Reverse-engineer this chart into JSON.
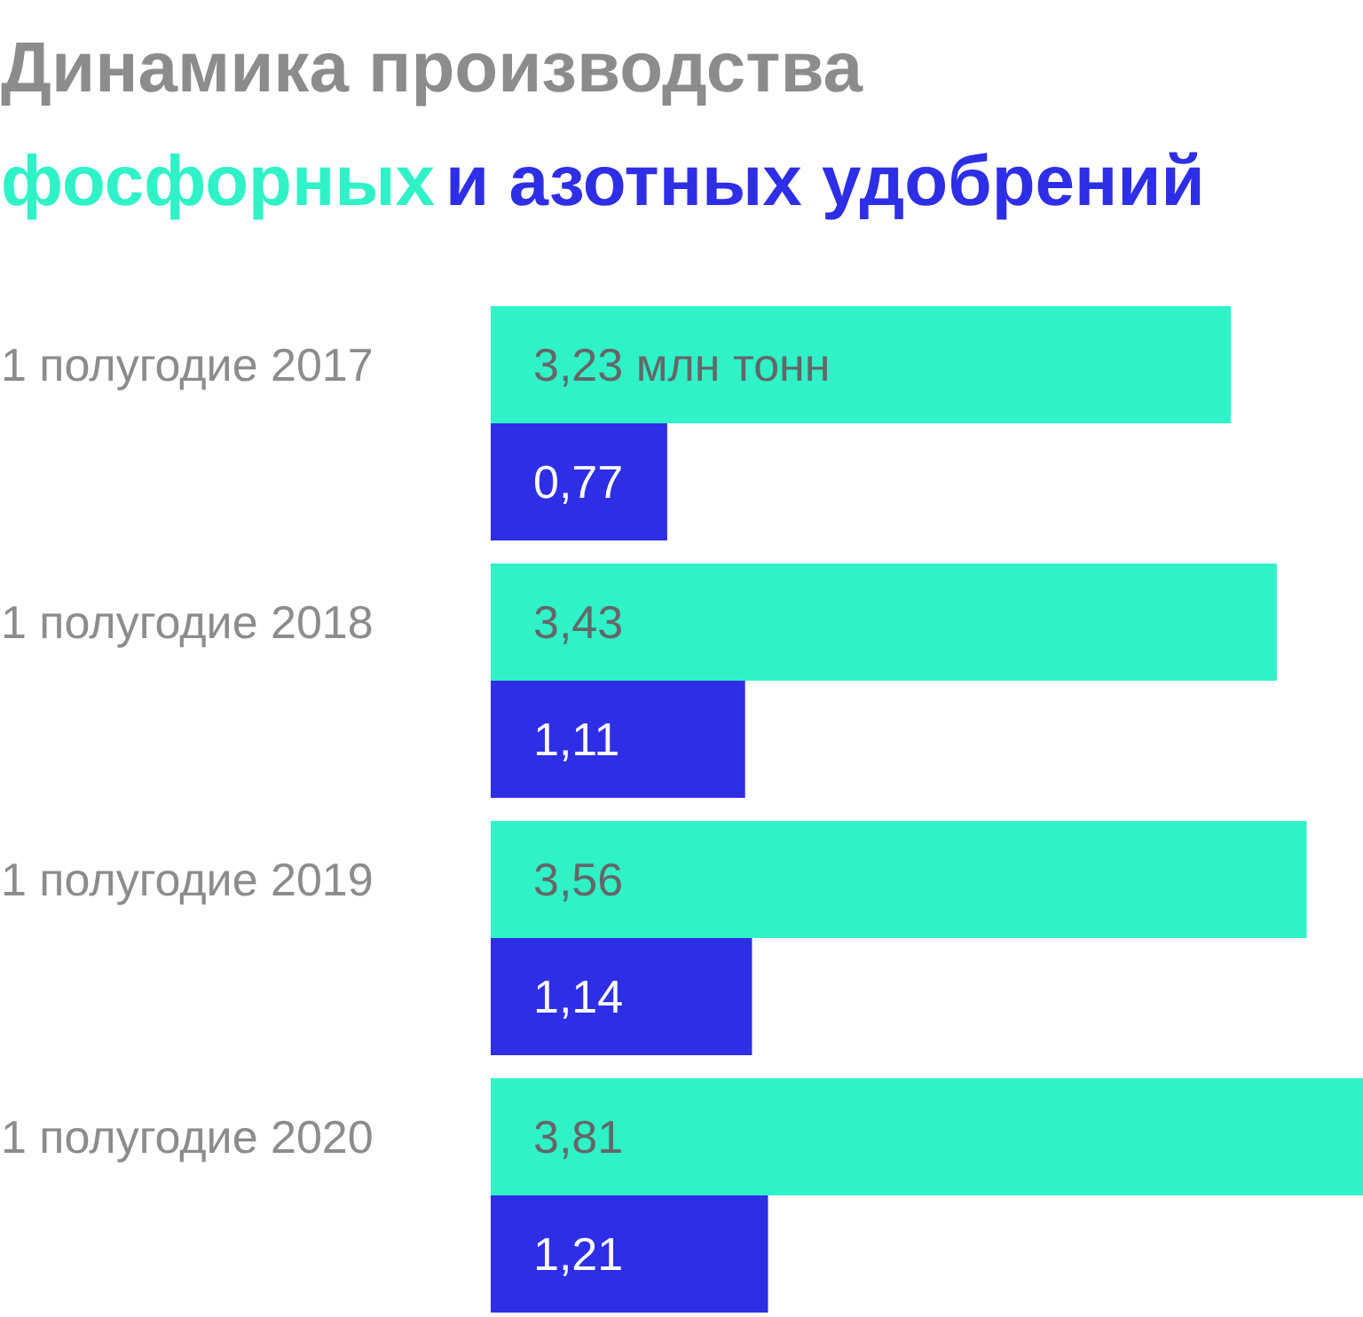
{
  "chart_data": {
    "type": "bar",
    "orientation": "horizontal",
    "title": "Динамика производства",
    "legend": "top",
    "categories": [
      "1 полугодие 2017",
      "1 полугодие 2018",
      "1 полугодие 2019",
      "1 полугодие 2020"
    ],
    "series": [
      {
        "name": "фосфорных",
        "color": "#2ff2c8",
        "values": [
          3.23,
          3.43,
          3.56,
          3.81
        ],
        "value_labels": [
          "3,23 млн тонн",
          "3,43",
          "3,56",
          "3,81"
        ]
      },
      {
        "name": "и азотных удобрений",
        "color": "#2e2ee6",
        "values": [
          0.77,
          1.11,
          1.14,
          1.21
        ],
        "value_labels": [
          "0,77",
          "1,11",
          "1,14",
          "1,21"
        ]
      }
    ]
  }
}
